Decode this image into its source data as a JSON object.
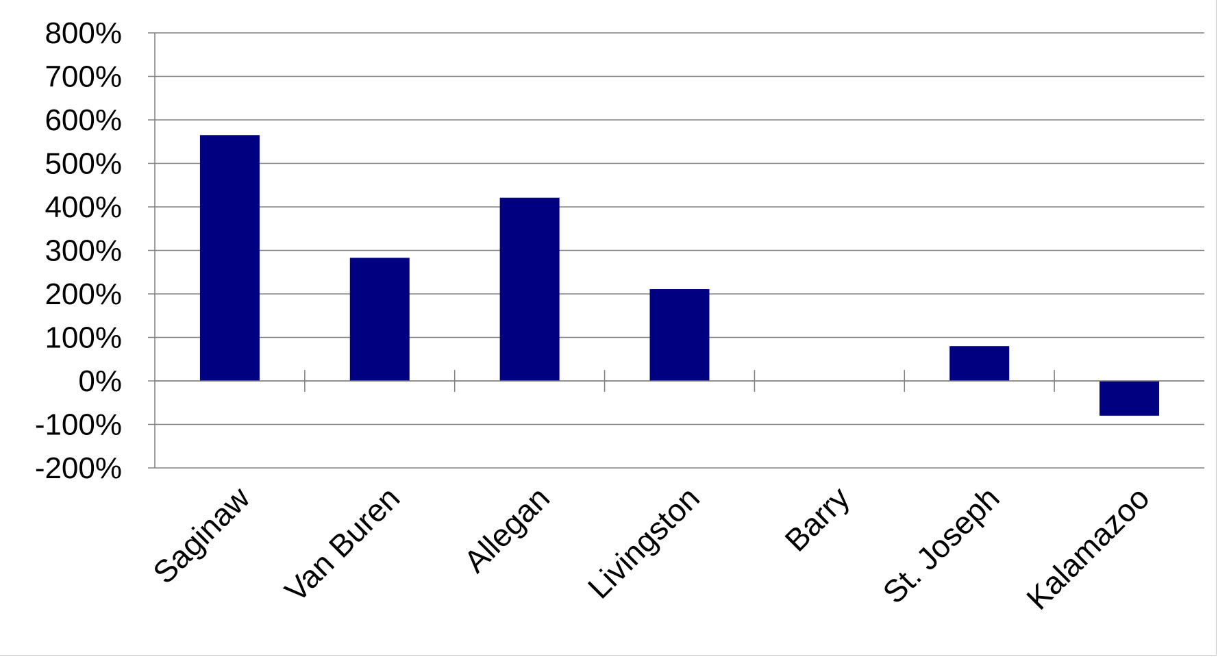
{
  "chart_data": {
    "type": "bar",
    "title": "",
    "xlabel": "",
    "ylabel": "",
    "categories": [
      "Saginaw",
      "Van Buren",
      "Allegan",
      "Livingston",
      "Barry",
      "St. Joseph",
      "Kalamazoo"
    ],
    "values": [
      565,
      283,
      421,
      211,
      0,
      80,
      -80
    ],
    "ylim": [
      -200,
      800
    ],
    "y_ticks": [
      -200,
      -100,
      0,
      100,
      200,
      300,
      400,
      500,
      600,
      700,
      800
    ],
    "y_tick_labels": [
      "-200%",
      "-100%",
      "0%",
      "100%",
      "200%",
      "300%",
      "400%",
      "500%",
      "600%",
      "700%",
      "800%"
    ],
    "grid": true,
    "legend": "none",
    "colors": {
      "bar": "#000080",
      "grid": "#808080",
      "axis": "#808080"
    }
  }
}
